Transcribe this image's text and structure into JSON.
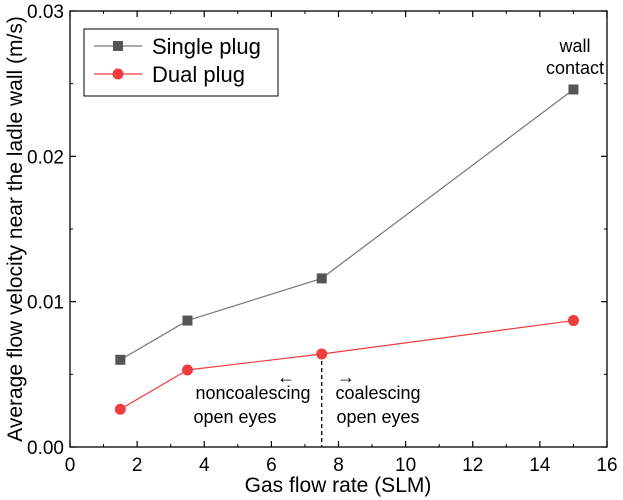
{
  "chart_data": {
    "type": "line",
    "xlabel": "Gas flow rate (SLM)",
    "ylabel": "Average flow velocity near the ladle wall (m/s)",
    "xlim": [
      0,
      16
    ],
    "ylim": [
      0,
      0.03
    ],
    "xticks": [
      0,
      2,
      4,
      6,
      8,
      10,
      12,
      14,
      16
    ],
    "yticks": [
      0.0,
      0.01,
      0.02,
      0.03
    ],
    "xtick_labels": [
      "0",
      "2",
      "4",
      "6",
      "8",
      "10",
      "12",
      "14",
      "16"
    ],
    "ytick_labels": [
      "0.00",
      "0.01",
      "0.02",
      "0.03"
    ],
    "grid": false,
    "legend_position": "top-left",
    "series": [
      {
        "name": "Single plug",
        "marker": "square",
        "color": "#555555",
        "line_color": "#777777",
        "x": [
          1.5,
          3.5,
          7.5,
          15
        ],
        "y": [
          0.006,
          0.0087,
          0.0116,
          0.0246
        ]
      },
      {
        "name": "Dual plug",
        "marker": "circle",
        "color": "#f03c3c",
        "line_color": "#f03c3c",
        "x": [
          1.5,
          3.5,
          7.5,
          15
        ],
        "y": [
          0.0026,
          0.0053,
          0.0064,
          0.0087
        ]
      }
    ],
    "annotations": {
      "wall_contact_line1": "wall",
      "wall_contact_line2": "contact",
      "left_arrow": "←",
      "right_arrow": "→",
      "left_line1": "noncoalescing",
      "left_line2": "open eyes",
      "right_line1": "coalescing",
      "right_line2": "open eyes",
      "divider_x": 7.5
    }
  }
}
